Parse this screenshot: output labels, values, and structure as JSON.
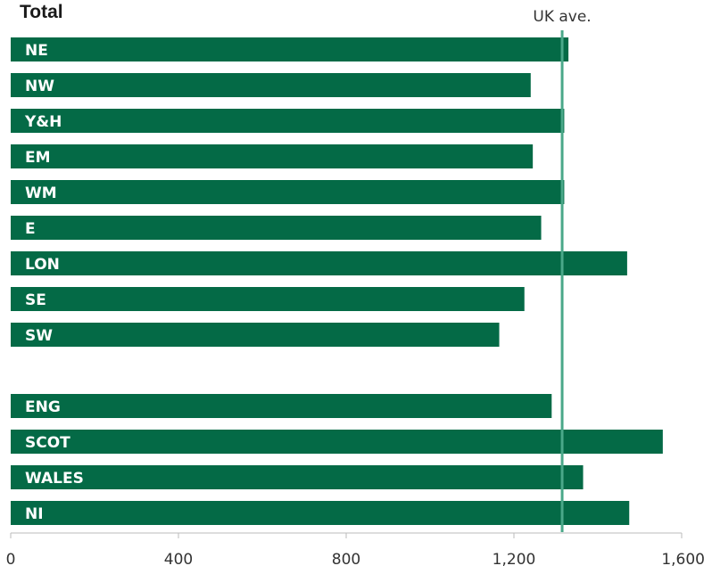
{
  "chart_data": {
    "type": "bar",
    "orientation": "horizontal",
    "title": "Total",
    "categories": [
      "NE",
      "NW",
      "Y&H",
      "EM",
      "WM",
      "E",
      "LON",
      "SE",
      "SW",
      "",
      "ENG",
      "SCOT",
      "WALES",
      "NI"
    ],
    "values": [
      1330,
      1240,
      1320,
      1245,
      1320,
      1265,
      1470,
      1225,
      1165,
      null,
      1290,
      1555,
      1365,
      1475
    ],
    "xlim": [
      0,
      1600
    ],
    "xticks": [
      0,
      400,
      800,
      1200,
      1600
    ],
    "xtick_labels": [
      "0",
      "400",
      "800",
      "1,200",
      "1,600"
    ],
    "reference_line": {
      "label": "UK ave.",
      "value": 1315
    },
    "grid": false,
    "colors": {
      "bar": "#046a46",
      "reference_line": "#4aa889",
      "axis": "#bbbbbb"
    }
  }
}
